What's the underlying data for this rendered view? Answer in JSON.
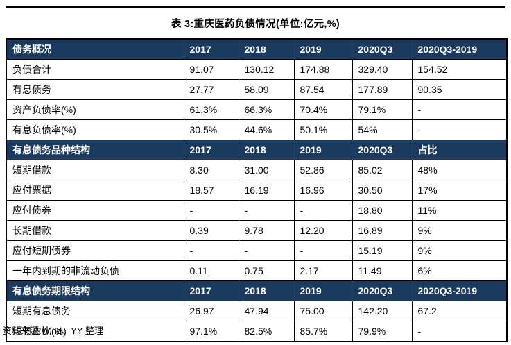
{
  "title": "表 3:重庆医药负债情况(单位:亿元,%)",
  "source": "资料来源:Wind、YY 整理",
  "colors": {
    "header_bg": "#1c3a5e",
    "header_text": "#ffffff",
    "border": "#000000"
  },
  "table": {
    "sections": [
      {
        "header": [
          "债务概况",
          "2017",
          "2018",
          "2019",
          "2020Q3",
          "2020Q3-2019"
        ],
        "rows": [
          [
            "负债合计",
            "91.07",
            "130.12",
            "174.88",
            "329.40",
            "154.52"
          ],
          [
            "有息债务",
            "27.77",
            "58.09",
            "87.54",
            "177.89",
            "90.35"
          ],
          [
            "资产负债率(%)",
            "61.3%",
            "66.3%",
            "70.4%",
            "79.1%",
            "-"
          ],
          [
            "有息负债率(%)",
            "30.5%",
            "44.6%",
            "50.1%",
            "54%",
            "-"
          ]
        ]
      },
      {
        "header": [
          "有息债务品种结构",
          "2017",
          "2018",
          "2019",
          "2020Q3",
          "占比"
        ],
        "rows": [
          [
            "短期借款",
            "8.30",
            "31.00",
            "52.86",
            "85.02",
            "48%"
          ],
          [
            "应付票据",
            "18.57",
            "16.19",
            "16.96",
            "30.50",
            "17%"
          ],
          [
            "应付债券",
            "-",
            "-",
            "-",
            "18.80",
            "11%"
          ],
          [
            "长期借款",
            "0.39",
            "9.78",
            "12.20",
            "16.89",
            "9%"
          ],
          [
            "应付短期债券",
            "-",
            "-",
            "-",
            "15.19",
            "9%"
          ],
          [
            "一年内到期的非流动负债",
            "0.11",
            "0.75",
            "2.17",
            "11.49",
            "6%"
          ]
        ]
      },
      {
        "header": [
          "有息债务期限结构",
          "2017",
          "2018",
          "2019",
          "2020Q3",
          "2020Q3-2019"
        ],
        "rows": [
          [
            "短期有息债务",
            "26.97",
            "47.94",
            "75.00",
            "142.20",
            "67.2"
          ],
          [
            "短债占比(%)",
            "97.1%",
            "82.5%",
            "85.7%",
            "79.9%",
            "-"
          ]
        ]
      }
    ]
  }
}
